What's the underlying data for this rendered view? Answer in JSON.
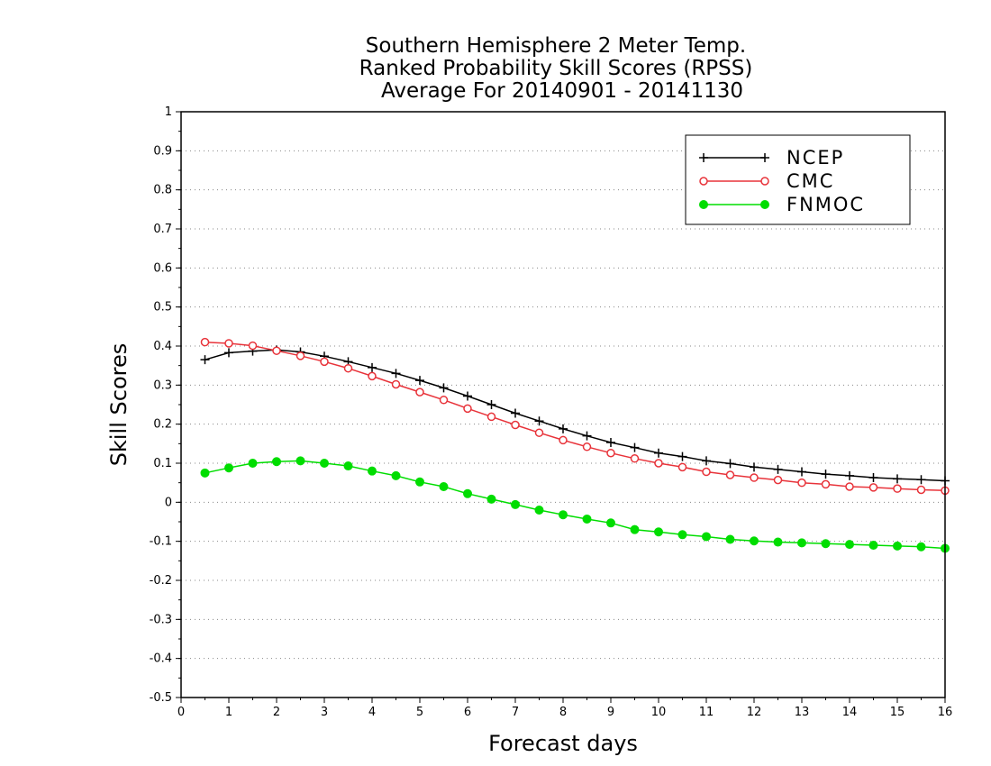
{
  "chart_data": {
    "type": "line",
    "title": [
      "Southern Hemisphere 2 Meter Temp.",
      "Ranked Probability Skill Scores (RPSS)",
      "Average For 20140901 - 20141130"
    ],
    "xlabel": "Forecast days",
    "ylabel": "Skill Scores",
    "xlim": [
      0,
      16
    ],
    "ylim": [
      -0.5,
      1
    ],
    "xticks": [
      0,
      1,
      2,
      3,
      4,
      5,
      6,
      7,
      8,
      9,
      10,
      11,
      12,
      13,
      14,
      15,
      16
    ],
    "yticks": [
      -0.5,
      -0.4,
      -0.3,
      -0.2,
      -0.1,
      0,
      0.1,
      0.2,
      0.3,
      0.4,
      0.5,
      0.6,
      0.7,
      0.8,
      0.9,
      1
    ],
    "ytick_labels": [
      "-0.5",
      "-0.4",
      "-0.3",
      "-0.2",
      "-0.1",
      "0",
      "0.1",
      "0.2",
      "0.3",
      "0.4",
      "0.5",
      "0.6",
      "0.7",
      "0.8",
      "0.9",
      "1"
    ],
    "grid": "horizontal dotted",
    "legend_position": "top-right",
    "x": [
      0.5,
      1,
      1.5,
      2,
      2.5,
      3,
      3.5,
      4,
      4.5,
      5,
      5.5,
      6,
      6.5,
      7,
      7.5,
      8,
      8.5,
      9,
      9.5,
      10,
      10.5,
      11,
      11.5,
      12,
      12.5,
      13,
      13.5,
      14,
      14.5,
      15,
      15.5,
      16
    ],
    "series": [
      {
        "name": "NCEP",
        "color": "#000000",
        "marker": "plus",
        "values": [
          0.365,
          0.383,
          0.387,
          0.39,
          0.385,
          0.374,
          0.36,
          0.345,
          0.33,
          0.312,
          0.293,
          0.272,
          0.25,
          0.228,
          0.208,
          0.188,
          0.17,
          0.153,
          0.14,
          0.126,
          0.117,
          0.106,
          0.099,
          0.09,
          0.084,
          0.078,
          0.072,
          0.068,
          0.063,
          0.06,
          0.058,
          0.055
        ]
      },
      {
        "name": "CMC",
        "color": "#e8333a",
        "marker": "open-circle",
        "values": [
          0.41,
          0.407,
          0.401,
          0.388,
          0.375,
          0.36,
          0.343,
          0.323,
          0.302,
          0.282,
          0.262,
          0.24,
          0.219,
          0.198,
          0.178,
          0.159,
          0.142,
          0.126,
          0.112,
          0.1,
          0.09,
          0.078,
          0.07,
          0.063,
          0.057,
          0.05,
          0.046,
          0.04,
          0.038,
          0.035,
          0.032,
          0.03
        ]
      },
      {
        "name": "FNMOC",
        "color": "#00dd00",
        "marker": "filled-circle",
        "values": [
          0.075,
          0.088,
          0.1,
          0.104,
          0.106,
          0.1,
          0.093,
          0.08,
          0.068,
          0.052,
          0.04,
          0.022,
          0.008,
          -0.006,
          -0.02,
          -0.032,
          -0.043,
          -0.053,
          -0.07,
          -0.076,
          -0.083,
          -0.088,
          -0.095,
          -0.099,
          -0.102,
          -0.104,
          -0.106,
          -0.108,
          -0.11,
          -0.112,
          -0.114,
          -0.118
        ]
      }
    ]
  }
}
